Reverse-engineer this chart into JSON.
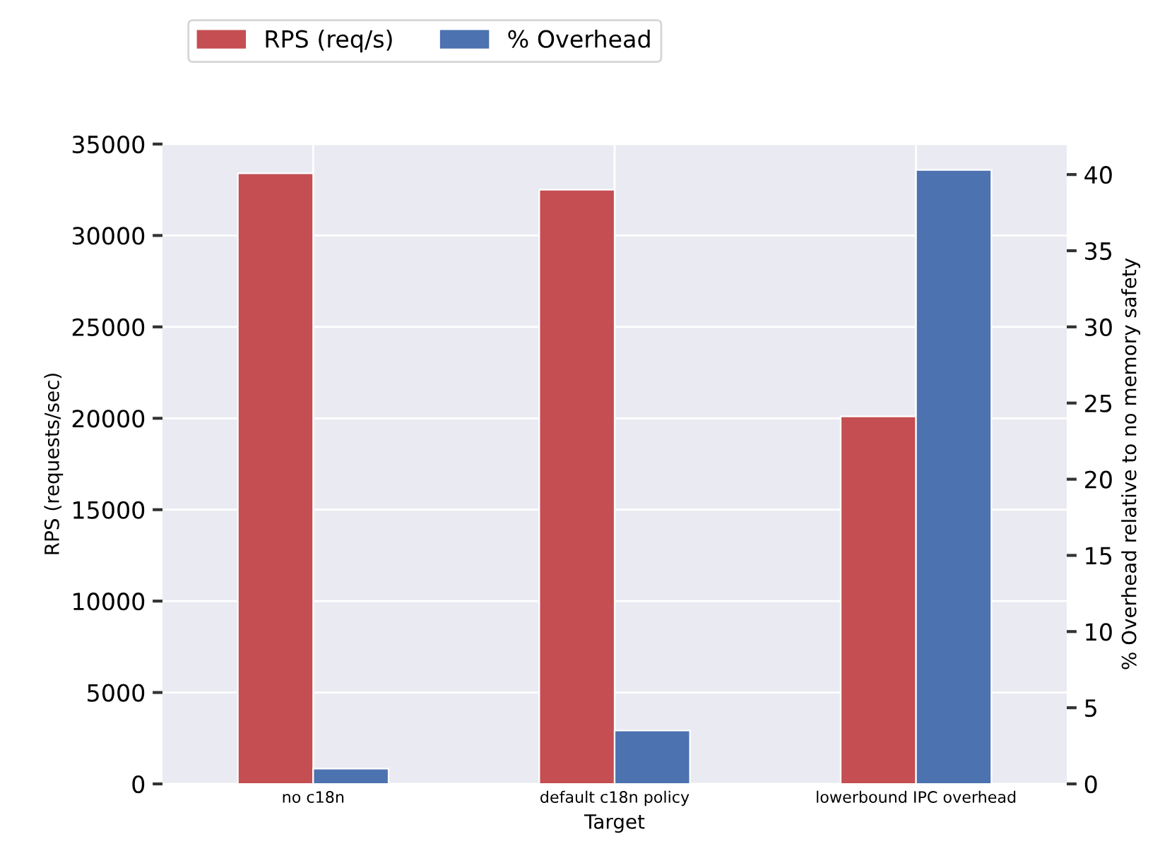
{
  "chart_data": {
    "type": "bar",
    "xlabel": "Target",
    "ylabel": "RPS (requests/sec)",
    "y2label": "% Overhead relative to no memory safety",
    "categories": [
      "no c18n",
      "default c18n policy",
      "lowerbound IPC overhead"
    ],
    "series": [
      {
        "name": "RPS (req/s)",
        "color": "#c44e52",
        "values": [
          33400,
          32500,
          20100
        ]
      },
      {
        "name": "% Overhead",
        "color": "#4c72b0",
        "values": [
          1.0,
          3.5,
          40.3
        ],
        "axis": "y2"
      }
    ],
    "ylim": [
      0,
      35000
    ],
    "yticks": [
      0,
      5000,
      10000,
      15000,
      20000,
      25000,
      30000,
      35000
    ],
    "y2lim": [
      0,
      42
    ],
    "y2ticks": [
      0,
      5,
      10,
      15,
      20,
      25,
      30,
      35,
      40
    ],
    "grid": true,
    "legend": "top left"
  }
}
